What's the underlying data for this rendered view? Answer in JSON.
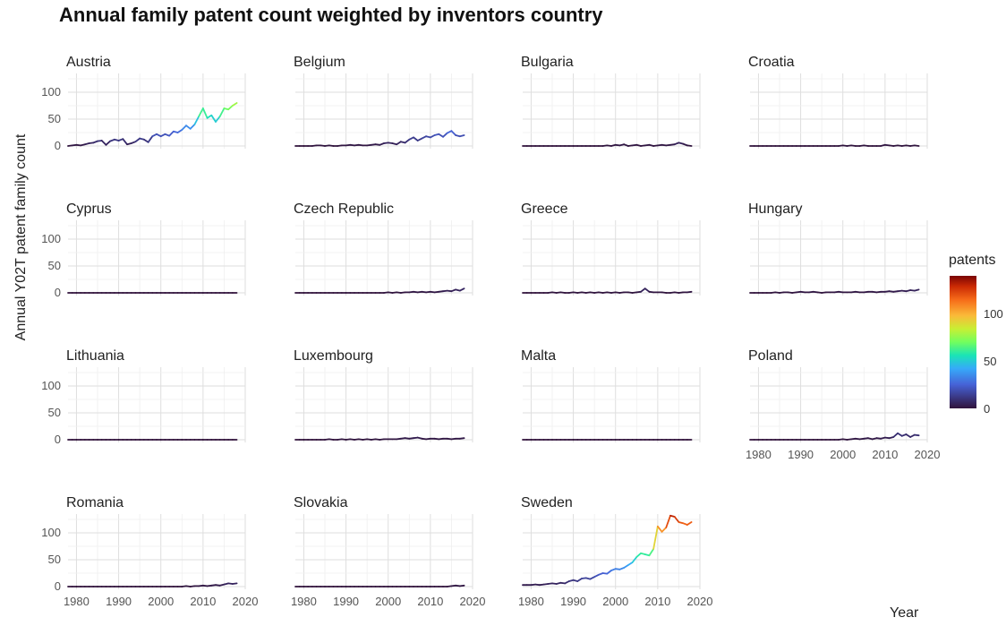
{
  "chart_data": {
    "type": "line",
    "title": "Annual family patent count weighted by inventors country",
    "xlabel": "Year",
    "ylabel": "Annual Y02T patent family count",
    "x_ticks": [
      1980,
      1990,
      2000,
      2010,
      2020
    ],
    "y_ticks": [
      0,
      50,
      100
    ],
    "xlim": [
      1978,
      2020
    ],
    "ylim": [
      -5,
      135
    ],
    "legend": {
      "title": "patents",
      "ticks": [
        0,
        50,
        100
      ],
      "range": [
        0,
        140
      ],
      "placement": "right"
    },
    "colorscale": [
      "#30123b",
      "#4662d7",
      "#36aaf9",
      "#1ae4b6",
      "#72fe5e",
      "#c8ef34",
      "#faba39",
      "#f66b19",
      "#cb2a04",
      "#7a0403"
    ],
    "x": [
      1978,
      1979,
      1980,
      1981,
      1982,
      1983,
      1984,
      1985,
      1986,
      1987,
      1988,
      1989,
      1990,
      1991,
      1992,
      1993,
      1994,
      1995,
      1996,
      1997,
      1998,
      1999,
      2000,
      2001,
      2002,
      2003,
      2004,
      2005,
      2006,
      2007,
      2008,
      2009,
      2010,
      2011,
      2012,
      2013,
      2014,
      2015,
      2016,
      2017,
      2018
    ],
    "series": [
      {
        "name": "Austria",
        "values": [
          0,
          1,
          2,
          1,
          3,
          5,
          6,
          9,
          10,
          2,
          9,
          12,
          10,
          13,
          3,
          5,
          8,
          14,
          12,
          7,
          18,
          22,
          18,
          22,
          19,
          27,
          25,
          30,
          38,
          32,
          40,
          55,
          70,
          52,
          57,
          45,
          55,
          70,
          68,
          75,
          80
        ]
      },
      {
        "name": "Belgium",
        "values": [
          0,
          0,
          0,
          0,
          0,
          1,
          1,
          0,
          1,
          0,
          0,
          1,
          1,
          2,
          1,
          2,
          1,
          1,
          2,
          3,
          2,
          5,
          6,
          5,
          3,
          8,
          6,
          12,
          16,
          10,
          14,
          18,
          16,
          20,
          22,
          17,
          24,
          28,
          20,
          18,
          20
        ]
      },
      {
        "name": "Bulgaria",
        "values": [
          0,
          0,
          0,
          0,
          0,
          0,
          0,
          0,
          0,
          0,
          0,
          0,
          0,
          0,
          0,
          0,
          0,
          0,
          0,
          0,
          1,
          0,
          2,
          1,
          3,
          0,
          1,
          2,
          0,
          1,
          2,
          0,
          1,
          2,
          1,
          2,
          3,
          6,
          4,
          1,
          0
        ]
      },
      {
        "name": "Croatia",
        "values": [
          0,
          0,
          0,
          0,
          0,
          0,
          0,
          0,
          0,
          0,
          0,
          0,
          0,
          0,
          0,
          0,
          0,
          0,
          0,
          0,
          0,
          0,
          1,
          0,
          1,
          0,
          0,
          1,
          0,
          0,
          0,
          0,
          2,
          1,
          0,
          1,
          0,
          1,
          0,
          1,
          0
        ]
      },
      {
        "name": "Cyprus",
        "values": [
          0,
          0,
          0,
          0,
          0,
          0,
          0,
          0,
          0,
          0,
          0,
          0,
          0,
          0,
          0,
          0,
          0,
          0,
          0,
          0,
          0,
          0,
          0,
          0,
          0,
          0,
          0,
          0,
          0,
          0,
          0,
          0,
          0,
          0,
          0,
          0,
          0,
          0,
          0,
          0,
          0
        ]
      },
      {
        "name": "Czech Republic",
        "values": [
          0,
          0,
          0,
          0,
          0,
          0,
          0,
          0,
          0,
          0,
          0,
          0,
          0,
          0,
          0,
          0,
          0,
          0,
          0,
          0,
          0,
          0,
          1,
          0,
          1,
          0,
          1,
          1,
          2,
          1,
          2,
          1,
          2,
          1,
          2,
          3,
          4,
          3,
          6,
          4,
          8
        ]
      },
      {
        "name": "Greece",
        "values": [
          0,
          0,
          0,
          0,
          0,
          0,
          0,
          1,
          0,
          1,
          0,
          0,
          1,
          0,
          1,
          0,
          1,
          0,
          1,
          0,
          1,
          0,
          1,
          0,
          1,
          1,
          0,
          1,
          2,
          8,
          2,
          1,
          1,
          1,
          0,
          0,
          1,
          0,
          1,
          1,
          2
        ]
      },
      {
        "name": "Hungary",
        "values": [
          0,
          0,
          0,
          0,
          0,
          0,
          1,
          0,
          1,
          1,
          0,
          1,
          2,
          1,
          1,
          2,
          1,
          0,
          1,
          1,
          1,
          2,
          1,
          1,
          1,
          2,
          1,
          1,
          2,
          2,
          1,
          2,
          2,
          3,
          2,
          3,
          4,
          3,
          5,
          4,
          6
        ]
      },
      {
        "name": "Lithuania",
        "values": [
          0,
          0,
          0,
          0,
          0,
          0,
          0,
          0,
          0,
          0,
          0,
          0,
          0,
          0,
          0,
          0,
          0,
          0,
          0,
          0,
          0,
          0,
          0,
          0,
          0,
          0,
          0,
          0,
          0,
          0,
          0,
          0,
          0,
          0,
          0,
          0,
          0,
          0,
          0,
          0,
          0
        ]
      },
      {
        "name": "Luxembourg",
        "values": [
          0,
          0,
          0,
          0,
          0,
          0,
          0,
          0,
          1,
          0,
          0,
          1,
          0,
          1,
          0,
          1,
          0,
          1,
          0,
          1,
          0,
          1,
          1,
          1,
          1,
          2,
          3,
          2,
          3,
          4,
          2,
          1,
          2,
          2,
          1,
          2,
          2,
          1,
          2,
          2,
          3
        ]
      },
      {
        "name": "Malta",
        "values": [
          0,
          0,
          0,
          0,
          0,
          0,
          0,
          0,
          0,
          0,
          0,
          0,
          0,
          0,
          0,
          0,
          0,
          0,
          0,
          0,
          0,
          0,
          0,
          0,
          0,
          0,
          0,
          0,
          0,
          0,
          0,
          0,
          0,
          0,
          0,
          0,
          0,
          0,
          0,
          0,
          0
        ]
      },
      {
        "name": "Poland",
        "values": [
          0,
          0,
          0,
          0,
          0,
          0,
          0,
          0,
          0,
          0,
          0,
          0,
          0,
          0,
          0,
          0,
          0,
          0,
          0,
          0,
          0,
          0,
          1,
          0,
          1,
          2,
          1,
          2,
          3,
          1,
          3,
          2,
          4,
          3,
          5,
          12,
          7,
          10,
          5,
          9,
          8
        ]
      },
      {
        "name": "Romania",
        "values": [
          0,
          0,
          0,
          0,
          0,
          0,
          0,
          0,
          0,
          0,
          0,
          0,
          0,
          0,
          0,
          0,
          0,
          0,
          0,
          0,
          0,
          0,
          0,
          0,
          0,
          0,
          0,
          0,
          1,
          0,
          1,
          1,
          2,
          1,
          2,
          3,
          2,
          4,
          6,
          5,
          6
        ]
      },
      {
        "name": "Slovakia",
        "values": [
          0,
          0,
          0,
          0,
          0,
          0,
          0,
          0,
          0,
          0,
          0,
          0,
          0,
          0,
          0,
          0,
          0,
          0,
          0,
          0,
          0,
          0,
          0,
          0,
          0,
          0,
          0,
          0,
          0,
          0,
          0,
          0,
          0,
          0,
          0,
          0,
          0,
          1,
          2,
          1,
          2
        ]
      },
      {
        "name": "Sweden",
        "values": [
          3,
          3,
          3,
          4,
          3,
          4,
          5,
          6,
          5,
          7,
          6,
          10,
          12,
          10,
          15,
          16,
          14,
          18,
          22,
          25,
          24,
          30,
          33,
          32,
          35,
          40,
          45,
          55,
          62,
          60,
          58,
          70,
          112,
          102,
          110,
          132,
          130,
          120,
          118,
          115,
          120
        ]
      }
    ]
  }
}
